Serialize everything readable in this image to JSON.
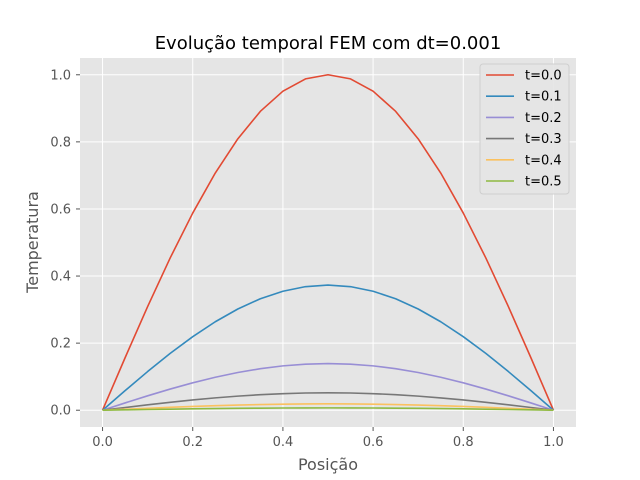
{
  "chart_data": {
    "type": "line",
    "title": "Evolução temporal FEM com dt=0.001",
    "xlabel": "Posição",
    "ylabel": "Temperatura",
    "xlim": [
      -0.05,
      1.05
    ],
    "ylim": [
      -0.05,
      1.05
    ],
    "xticks": [
      0.0,
      0.2,
      0.4,
      0.6,
      0.8,
      1.0
    ],
    "xtick_labels": [
      "0.0",
      "0.2",
      "0.4",
      "0.6",
      "0.8",
      "1.0"
    ],
    "yticks": [
      0.0,
      0.2,
      0.4,
      0.6,
      0.8,
      1.0
    ],
    "ytick_labels": [
      "0.0",
      "0.2",
      "0.4",
      "0.6",
      "0.8",
      "1.0"
    ],
    "grid": true,
    "legend_position": "top-right",
    "x": [
      0.0,
      0.05,
      0.1,
      0.15,
      0.2,
      0.25,
      0.3,
      0.35,
      0.4,
      0.45,
      0.5,
      0.55,
      0.6,
      0.65,
      0.7,
      0.75,
      0.8,
      0.85,
      0.9,
      0.95,
      1.0
    ],
    "series": [
      {
        "name": "t=0.0",
        "color": "#E24A33",
        "peak": 1.0
      },
      {
        "name": "t=0.1",
        "color": "#348ABD",
        "peak": 0.373
      },
      {
        "name": "t=0.2",
        "color": "#988ED5",
        "peak": 0.139
      },
      {
        "name": "t=0.3",
        "color": "#777777",
        "peak": 0.052
      },
      {
        "name": "t=0.4",
        "color": "#FBC15E",
        "peak": 0.019
      },
      {
        "name": "t=0.5",
        "color": "#8EBA42",
        "peak": 0.007
      }
    ]
  }
}
